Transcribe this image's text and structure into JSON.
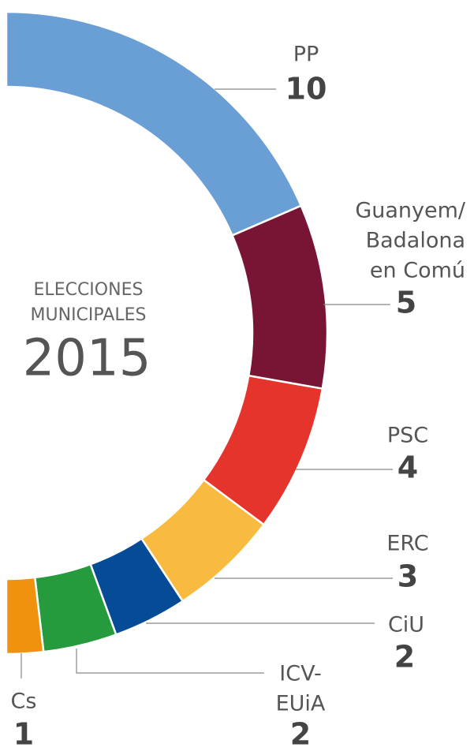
{
  "chart_data": {
    "type": "half-donut",
    "title_lines": [
      "ELECCIONES",
      "MUNICIPALES"
    ],
    "year": "2015",
    "parties": [
      {
        "name_lines": [
          "PP"
        ],
        "seats": 10,
        "color": "#6a9fd6"
      },
      {
        "name_lines": [
          "Guanyem/",
          "Badalona",
          "en Comú"
        ],
        "seats": 5,
        "color": "#781535"
      },
      {
        "name_lines": [
          "PSC"
        ],
        "seats": 4,
        "color": "#e4342b"
      },
      {
        "name_lines": [
          "ERC"
        ],
        "seats": 3,
        "color": "#f8bb40"
      },
      {
        "name_lines": [
          "CiU"
        ],
        "seats": 2,
        "color": "#064b96"
      },
      {
        "name_lines": [
          "ICV-",
          "EUiA"
        ],
        "seats": 2,
        "color": "#259b3e"
      },
      {
        "name_lines": [
          "Cs"
        ],
        "seats": 1,
        "color": "#f0920d"
      }
    ]
  }
}
